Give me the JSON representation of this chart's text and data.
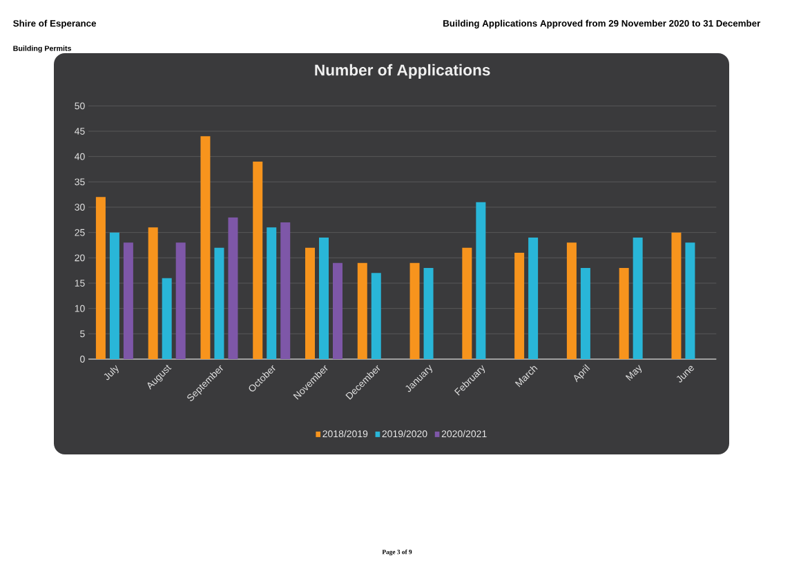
{
  "chart_data": {
    "type": "bar",
    "title": "Number of Applications",
    "categories": [
      "July",
      "August",
      "September",
      "October",
      "November",
      "December",
      "January",
      "February",
      "March",
      "April",
      "May",
      "June"
    ],
    "series": [
      {
        "name": "2018/2019",
        "color": "#f7941d",
        "values": [
          32,
          26,
          44,
          39,
          22,
          19,
          19,
          22,
          21,
          23,
          18,
          25
        ]
      },
      {
        "name": "2019/2020",
        "color": "#29b6d8",
        "values": [
          25,
          16,
          22,
          26,
          24,
          17,
          18,
          31,
          24,
          18,
          24,
          23
        ]
      },
      {
        "name": "2020/2021",
        "color": "#7e57a8",
        "values": [
          23,
          23,
          28,
          27,
          19,
          null,
          null,
          null,
          null,
          null,
          null,
          null
        ]
      }
    ],
    "ylim": [
      0,
      50
    ],
    "yticks": [
      0,
      5,
      10,
      15,
      20,
      25,
      30,
      35,
      40,
      45,
      50
    ],
    "grid": "y",
    "legend": "bottom",
    "annotations": [
      "Shire of Esperance",
      "Building Applications Approved from 29 November 2020 to 31 December",
      "Building Permits",
      "Page 3 of 9"
    ]
  }
}
